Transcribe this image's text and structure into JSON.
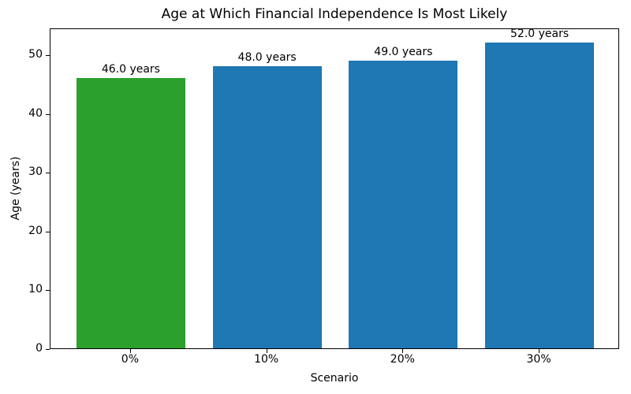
{
  "chart_data": {
    "type": "bar",
    "title": "Age at Which Financial Independence Is Most Likely",
    "xlabel": "Scenario",
    "ylabel": "Age (years)",
    "categories": [
      "0%",
      "10%",
      "20%",
      "30%"
    ],
    "values": [
      46.0,
      48.0,
      49.0,
      52.0
    ],
    "bar_labels": [
      "46.0 years",
      "48.0 years",
      "49.0 years",
      "52.0 years"
    ],
    "bar_colors": [
      "#2ca02c",
      "#1f77b4",
      "#1f77b4",
      "#1f77b4"
    ],
    "ylim": [
      0,
      54.6
    ],
    "yticks": [
      0,
      10,
      20,
      30,
      40,
      50
    ],
    "grid": false,
    "legend": "none",
    "colors": {
      "highlight_green": "#2ca02c",
      "default_blue": "#1f77b4",
      "text": "#000000",
      "background": "#ffffff"
    }
  }
}
